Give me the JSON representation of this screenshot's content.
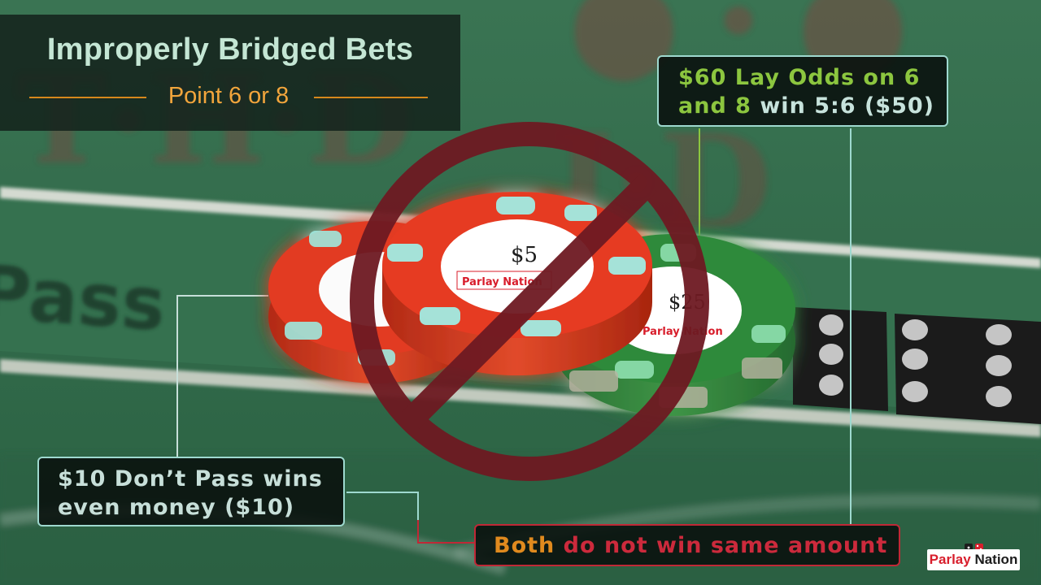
{
  "title": "Improperly Bridged Bets",
  "subtitle": "Point 6 or 8",
  "callouts": {
    "lay_odds_1": "$60 Lay Odds on 6",
    "lay_odds_2a": "and 8",
    "lay_odds_2b": " win 5:6 ($50)",
    "dont_pass_1": "$10 Don’t Pass wins",
    "dont_pass_2": "even money ($10)",
    "both_a": "Both",
    "both_b": " do not win same amount"
  },
  "table_text": "Pass",
  "chips": [
    {
      "value_label": "$5",
      "brand": "Parlay Nation",
      "color": "#e23a22"
    },
    {
      "value_label": "$25",
      "brand": "Parlay Nation",
      "color": "#2f8a3a"
    }
  ],
  "logo": {
    "part1": "Parlay",
    "part2": "Nation"
  },
  "colors": {
    "felt": "#2f6a48",
    "title_text": "#c4e6d4",
    "subtitle_text": "#f2a53c",
    "lay_odds_green": "#8cc63f",
    "callout_border": "#9ed9cf",
    "warning_red": "#c02836",
    "prohibition_sign": "#6e1a22"
  },
  "icons": [
    "prohibition-sign-icon",
    "dice-icon"
  ]
}
